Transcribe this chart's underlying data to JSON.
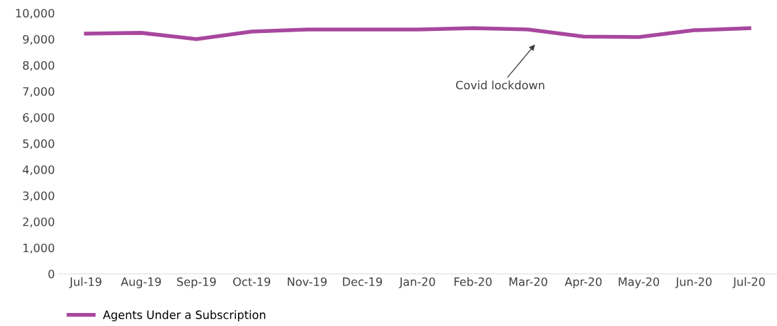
{
  "chart_data": {
    "type": "line",
    "categories": [
      "Jul-19",
      "Aug-19",
      "Sep-19",
      "Oct-19",
      "Nov-19",
      "Dec-19",
      "Jan-20",
      "Feb-20",
      "Mar-20",
      "Apr-20",
      "May-20",
      "Jun-20",
      "Jul-20"
    ],
    "series": [
      {
        "name": "Agents Under a Subscription",
        "color": "#a8479e",
        "values": [
          9210,
          9240,
          9000,
          9290,
          9370,
          9370,
          9370,
          9420,
          9370,
          9100,
          9080,
          9340,
          9420
        ]
      }
    ],
    "ylim": [
      0,
      10000
    ],
    "yticks": [
      {
        "value": 0,
        "label": "0"
      },
      {
        "value": 1000,
        "label": "1,000"
      },
      {
        "value": 2000,
        "label": "2,000"
      },
      {
        "value": 3000,
        "label": "3,000"
      },
      {
        "value": 4000,
        "label": "4,000"
      },
      {
        "value": 5000,
        "label": "5,000"
      },
      {
        "value": 6000,
        "label": "6,000"
      },
      {
        "value": 7000,
        "label": "7,000"
      },
      {
        "value": 8000,
        "label": "8,000"
      },
      {
        "value": 9000,
        "label": "9,000"
      },
      {
        "value": 10000,
        "label": "10,000"
      }
    ],
    "annotations": [
      "Covid lockdown"
    ],
    "grid": false,
    "legend": "bottom left",
    "marker": "none",
    "line_style": "solid"
  }
}
